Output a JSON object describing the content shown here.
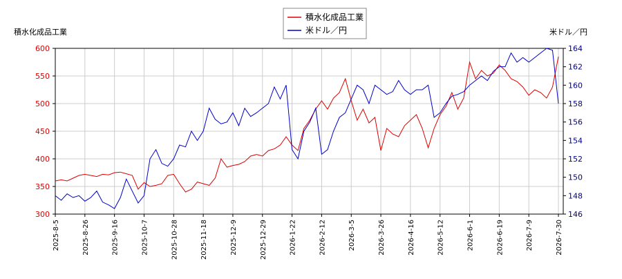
{
  "chart_data": {
    "type": "line",
    "ylabel": "積水化成品工業",
    "y2label": "米ドル／円",
    "x": [
      "2025-8-5",
      null,
      null,
      null,
      null,
      "2025-8-26",
      null,
      null,
      null,
      null,
      "2025-9-16",
      null,
      null,
      null,
      null,
      "2025-10-7",
      null,
      null,
      null,
      null,
      "2025-10-28",
      null,
      null,
      null,
      null,
      "2025-11-18",
      null,
      null,
      null,
      null,
      "2025-12-9",
      null,
      null,
      null,
      null,
      "2025-12-29",
      null,
      null,
      null,
      null,
      "2026-1-22",
      null,
      null,
      null,
      null,
      "2026-2-12",
      null,
      null,
      null,
      null,
      "2026-3-5",
      null,
      null,
      null,
      null,
      "2026-3-26",
      null,
      null,
      null,
      null,
      "2026-4-16",
      null,
      null,
      null,
      null,
      "2026-5-12",
      null,
      null,
      null,
      null,
      "2026-6-1",
      null,
      null,
      null,
      null,
      "2026-6-19",
      null,
      null,
      null,
      null,
      "2026-7-9",
      null,
      null,
      null,
      null,
      "2026-7-30"
    ],
    "series": [
      {
        "name": "積水化成品工業",
        "color": "#dd0000",
        "axis": "y",
        "values": [
          360,
          362,
          360,
          365,
          370,
          372,
          370,
          368,
          372,
          371,
          375,
          376,
          373,
          370,
          345,
          357,
          350,
          352,
          355,
          370,
          372,
          355,
          340,
          345,
          358,
          355,
          352,
          365,
          400,
          385,
          388,
          390,
          395,
          405,
          408,
          405,
          415,
          418,
          425,
          440,
          425,
          415,
          455,
          470,
          490,
          505,
          490,
          510,
          520,
          545,
          505,
          470,
          490,
          465,
          475,
          415,
          455,
          445,
          440,
          460,
          470,
          480,
          455,
          420,
          455,
          480,
          495,
          520,
          490,
          510,
          575,
          545,
          560,
          550,
          555,
          570,
          560,
          545,
          540,
          530,
          515,
          525,
          520,
          510,
          530,
          585
        ]
      },
      {
        "name": "米ドル／円",
        "color": "#0000cc",
        "axis": "y2",
        "values": [
          148,
          147.5,
          148.2,
          147.8,
          148,
          147.4,
          147.8,
          148.5,
          147.3,
          147,
          146.6,
          147.8,
          149.8,
          148.5,
          147.2,
          148,
          152,
          153,
          151.5,
          151.2,
          152,
          153.5,
          153.3,
          155,
          154,
          155,
          157.5,
          156.3,
          155.8,
          156,
          157,
          155.6,
          157.5,
          156.6,
          157,
          157.5,
          158,
          159.8,
          158.5,
          160,
          153,
          152,
          155,
          156,
          157.5,
          152.5,
          153,
          155,
          156.5,
          157,
          158.5,
          160,
          159.5,
          158,
          160,
          159.5,
          159,
          159.3,
          160.5,
          159.5,
          159,
          159.5,
          159.5,
          160,
          156.5,
          157,
          158,
          158.8,
          159,
          159.3,
          160,
          160.5,
          161,
          160.5,
          161.5,
          162,
          162,
          163.5,
          162.5,
          163,
          162.5,
          163,
          163.5,
          164,
          163.8,
          158
        ]
      }
    ],
    "ylim": [
      300,
      600
    ],
    "yticks": [
      300,
      350,
      400,
      450,
      500,
      550,
      600
    ],
    "y2lim": [
      146,
      164
    ],
    "y2ticks": [
      146,
      148,
      150,
      152,
      154,
      156,
      158,
      160,
      162,
      164
    ],
    "grid": true,
    "legend": "top"
  }
}
